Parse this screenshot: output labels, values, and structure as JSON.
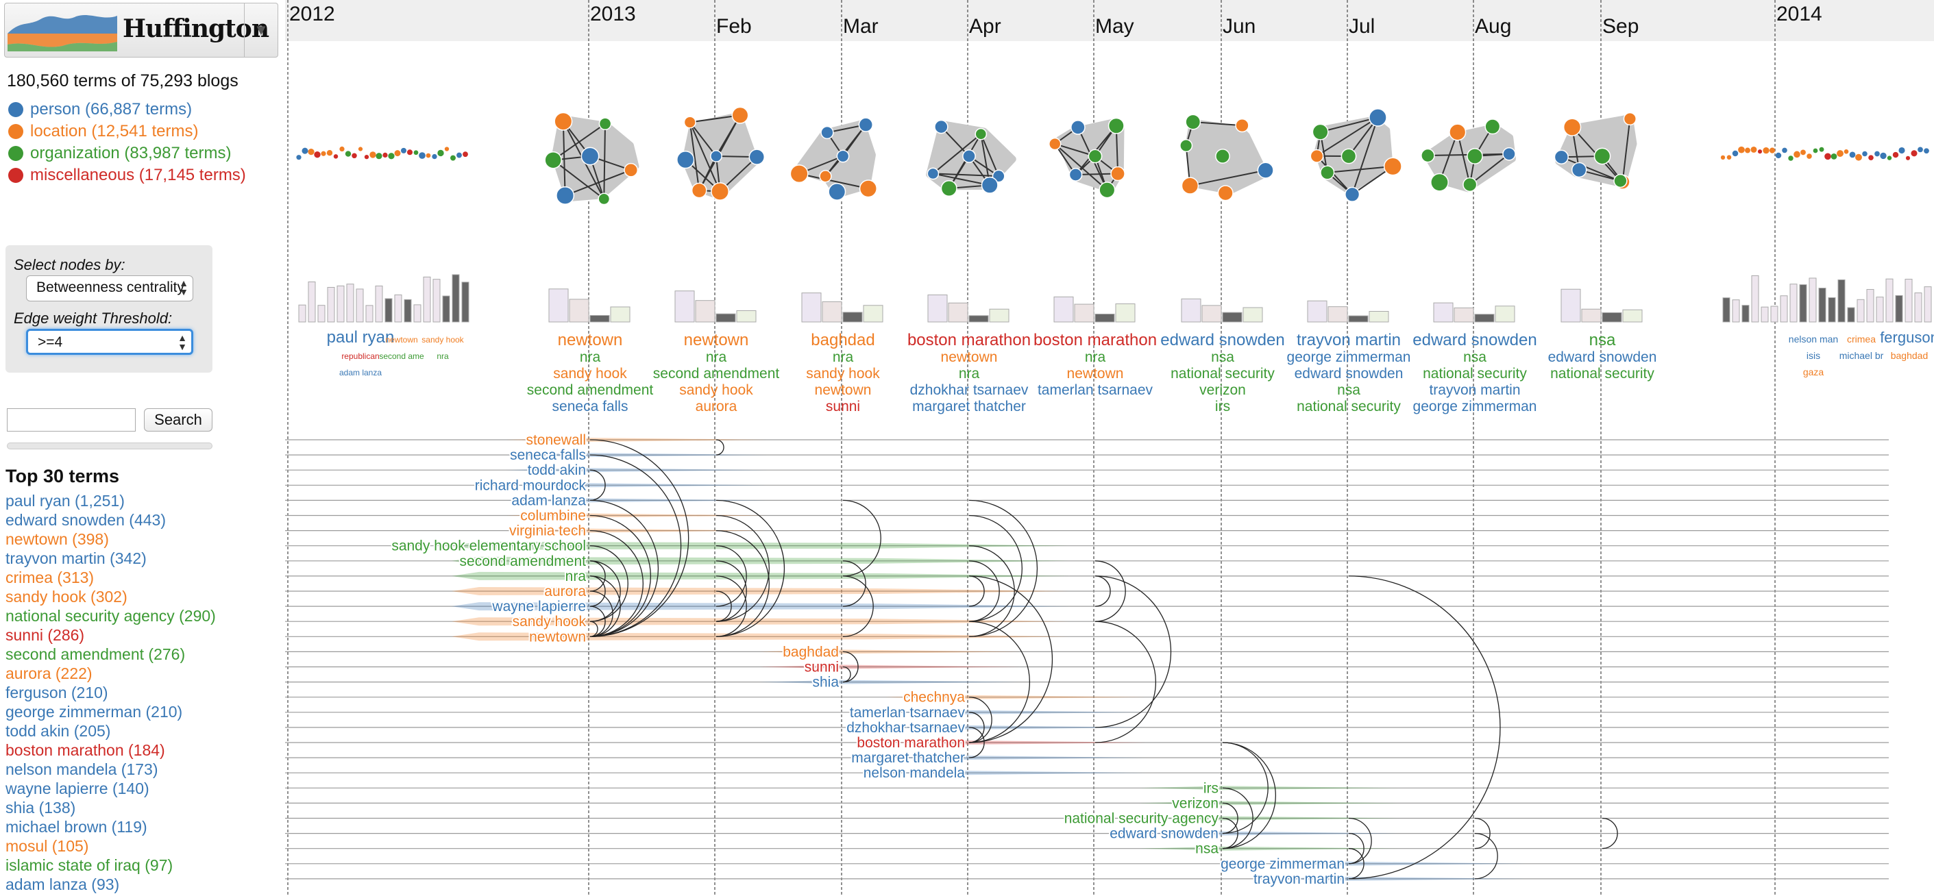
{
  "app": {
    "title": "Huffington"
  },
  "summary": "180,560 terms of 75,293 blogs",
  "colors": {
    "person": "#3a78b5",
    "location": "#f07e24",
    "organization": "#3c9a34",
    "miscellaneous": "#cf2b27",
    "panel": "#e8e8e8",
    "accent": "#3b8ddd"
  },
  "legend": [
    {
      "label": "person (66,887 terms)",
      "color": "#3a78b5"
    },
    {
      "label": "location (12,541 terms)",
      "color": "#f07e24"
    },
    {
      "label": "organization (83,987 terms)",
      "color": "#3c9a34"
    },
    {
      "label": "miscellaneous (17,145 terms)",
      "color": "#cf2b27"
    }
  ],
  "controls": {
    "select_nodes_label": "Select nodes by:",
    "select_nodes_value": "Betweenness centrality",
    "threshold_label": "Edge weight Threshold:",
    "threshold_value": ">=4"
  },
  "search": {
    "value": "",
    "button_label": "Search"
  },
  "top_terms": {
    "title": "Top 30 terms",
    "items": [
      {
        "label": "paul ryan (1,251)",
        "color": "#3a78b5"
      },
      {
        "label": "edward snowden (443)",
        "color": "#3a78b5"
      },
      {
        "label": "newtown (398)",
        "color": "#f07e24"
      },
      {
        "label": "trayvon martin (342)",
        "color": "#3a78b5"
      },
      {
        "label": "crimea (313)",
        "color": "#f07e24"
      },
      {
        "label": "sandy hook (302)",
        "color": "#f07e24"
      },
      {
        "label": "national security agency (290)",
        "color": "#3c9a34"
      },
      {
        "label": "sunni (286)",
        "color": "#cf2b27"
      },
      {
        "label": "second amendment (276)",
        "color": "#3c9a34"
      },
      {
        "label": "aurora (222)",
        "color": "#f07e24"
      },
      {
        "label": "ferguson (210)",
        "color": "#3a78b5"
      },
      {
        "label": "george zimmerman (210)",
        "color": "#3a78b5"
      },
      {
        "label": "todd akin (205)",
        "color": "#3a78b5"
      },
      {
        "label": "boston marathon (184)",
        "color": "#cf2b27"
      },
      {
        "label": "nelson mandela (173)",
        "color": "#3a78b5"
      },
      {
        "label": "wayne lapierre (140)",
        "color": "#3a78b5"
      },
      {
        "label": "shia (138)",
        "color": "#3a78b5"
      },
      {
        "label": "michael brown (119)",
        "color": "#3a78b5"
      },
      {
        "label": "mosul (105)",
        "color": "#f07e24"
      },
      {
        "label": "islamic state of iraq (97)",
        "color": "#3c9a34"
      },
      {
        "label": "adam lanza (93)",
        "color": "#3a78b5"
      }
    ]
  },
  "timeline": {
    "years": [
      "2012",
      "2013",
      "2014"
    ],
    "months": [
      "Feb",
      "Mar",
      "Apr",
      "May",
      "Jun",
      "Jul",
      "Aug",
      "Sep"
    ]
  },
  "periods": [
    {
      "terms": [
        [
          "newtown",
          "location"
        ],
        [
          "nra",
          "organization"
        ],
        [
          "sandy hook",
          "location"
        ],
        [
          "second amendment",
          "organization"
        ],
        [
          "seneca falls",
          "person"
        ]
      ]
    },
    {
      "terms": [
        [
          "newtown",
          "location"
        ],
        [
          "nra",
          "organization"
        ],
        [
          "second amendment",
          "organization"
        ],
        [
          "sandy hook",
          "location"
        ],
        [
          "aurora",
          "location"
        ]
      ]
    },
    {
      "terms": [
        [
          "baghdad",
          "location"
        ],
        [
          "nra",
          "organization"
        ],
        [
          "sandy hook",
          "location"
        ],
        [
          "newtown",
          "location"
        ],
        [
          "sunni",
          "miscellaneous"
        ]
      ]
    },
    {
      "terms": [
        [
          "boston marathon",
          "miscellaneous"
        ],
        [
          "newtown",
          "location"
        ],
        [
          "nra",
          "organization"
        ],
        [
          "dzhokhar tsarnaev",
          "person"
        ],
        [
          "margaret thatcher",
          "person"
        ]
      ]
    },
    {
      "terms": [
        [
          "boston marathon",
          "miscellaneous"
        ],
        [
          "nra",
          "organization"
        ],
        [
          "newtown",
          "location"
        ],
        [
          "tamerlan tsarnaev",
          "person"
        ]
      ]
    },
    {
      "terms": [
        [
          "edward snowden",
          "person"
        ],
        [
          "nsa",
          "organization"
        ],
        [
          "national security",
          "organization"
        ],
        [
          "verizon",
          "organization"
        ],
        [
          "irs",
          "organization"
        ]
      ]
    },
    {
      "terms": [
        [
          "trayvon martin",
          "person"
        ],
        [
          "george zimmerman",
          "person"
        ],
        [
          "edward snowden",
          "person"
        ],
        [
          "nsa",
          "organization"
        ],
        [
          "national security",
          "organization"
        ]
      ]
    },
    {
      "terms": [
        [
          "edward snowden",
          "person"
        ],
        [
          "nsa",
          "organization"
        ],
        [
          "national security",
          "organization"
        ],
        [
          "trayvon martin",
          "person"
        ],
        [
          "george zimmerman",
          "person"
        ]
      ]
    },
    {
      "terms": [
        [
          "nsa",
          "organization"
        ],
        [
          "edward snowden",
          "person"
        ],
        [
          "national security",
          "organization"
        ]
      ]
    }
  ],
  "side_words": {
    "left": [
      [
        "paul ryan",
        "person"
      ],
      [
        "newtown",
        "location"
      ],
      [
        "sandy hook",
        "location"
      ],
      [
        "republican",
        "miscellaneous"
      ],
      [
        "second ame",
        "organization"
      ],
      [
        "nra",
        "organization"
      ],
      [
        "adam lanza",
        "person"
      ]
    ],
    "right": [
      [
        "nelson man",
        "person"
      ],
      [
        "crimea",
        "location"
      ],
      [
        "ferguson",
        "person"
      ],
      [
        "isis",
        "person"
      ],
      [
        "michael br",
        "person"
      ],
      [
        "baghdad",
        "location"
      ],
      [
        "gaza",
        "location"
      ]
    ]
  },
  "rows": [
    {
      "label": "stonewall",
      "type": "location"
    },
    {
      "label": "seneca falls",
      "type": "person"
    },
    {
      "label": "todd akin",
      "type": "person"
    },
    {
      "label": "richard mourdock",
      "type": "person"
    },
    {
      "label": "adam lanza",
      "type": "person"
    },
    {
      "label": "columbine",
      "type": "location"
    },
    {
      "label": "virginia tech",
      "type": "location"
    },
    {
      "label": "sandy hook elementary school",
      "type": "organization"
    },
    {
      "label": "second amendment",
      "type": "organization"
    },
    {
      "label": "nra",
      "type": "organization"
    },
    {
      "label": "aurora",
      "type": "location"
    },
    {
      "label": "wayne lapierre",
      "type": "person"
    },
    {
      "label": "sandy hook",
      "type": "location"
    },
    {
      "label": "newtown",
      "type": "location"
    },
    {
      "label": "baghdad",
      "type": "location"
    },
    {
      "label": "sunni",
      "type": "miscellaneous"
    },
    {
      "label": "shia",
      "type": "person"
    },
    {
      "label": "chechnya",
      "type": "location"
    },
    {
      "label": "tamerlan tsarnaev",
      "type": "person"
    },
    {
      "label": "dzhokhar tsarnaev",
      "type": "person"
    },
    {
      "label": "boston marathon",
      "type": "miscellaneous"
    },
    {
      "label": "margaret thatcher",
      "type": "person"
    },
    {
      "label": "nelson mandela",
      "type": "person"
    },
    {
      "label": "irs",
      "type": "organization"
    },
    {
      "label": "verizon",
      "type": "organization"
    },
    {
      "label": "national security agency",
      "type": "organization"
    },
    {
      "label": "edward snowden",
      "type": "person"
    },
    {
      "label": "nsa",
      "type": "organization"
    },
    {
      "label": "george zimmerman",
      "type": "person"
    },
    {
      "label": "trayvon martin",
      "type": "person"
    }
  ]
}
